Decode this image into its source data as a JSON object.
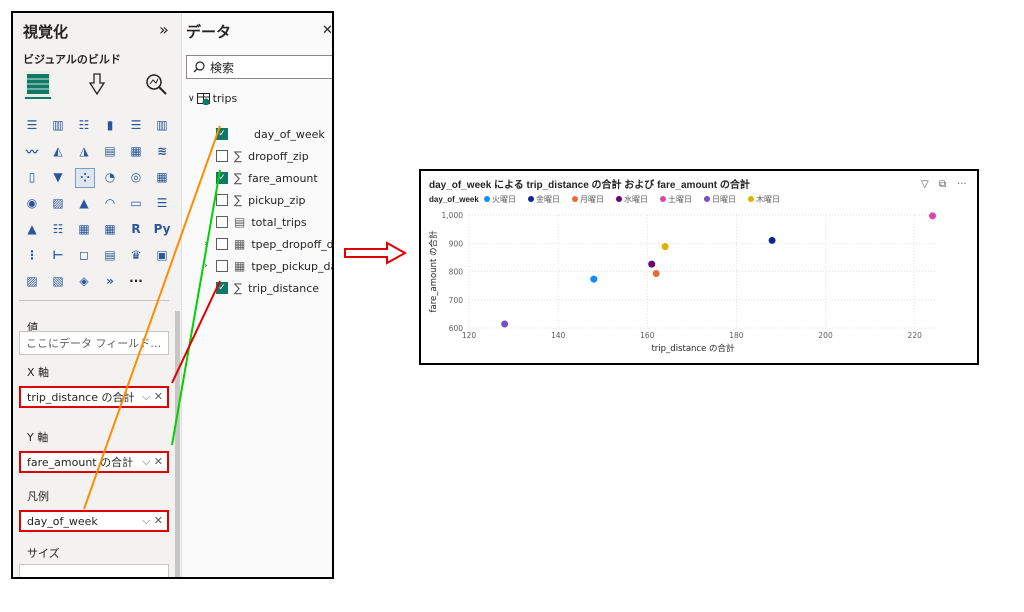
{
  "viz_pane": {
    "title": "視覚化",
    "collapse_glyph": "»",
    "build_label": "ビジュアルのビルド",
    "value_section": "値",
    "value_placeholder": "ここにデータ フィールド…",
    "x_axis_label": "X 軸",
    "x_axis_field": "trip_distance の合計",
    "y_axis_label": "Y 軸",
    "y_axis_field": "fare_amount の合計",
    "legend_label": "凡例",
    "legend_field": "day_of_week",
    "size_label": "サイズ",
    "well_controls": "⌵ ✕",
    "more_visuals": "···"
  },
  "data_pane": {
    "title": "データ",
    "close_glyph": "✕",
    "search_placeholder": "検索",
    "table_name": "trips",
    "fields": [
      {
        "label": "day_of_week",
        "checked": true,
        "kind": "text"
      },
      {
        "label": "dropoff_zip",
        "checked": false,
        "kind": "sigma"
      },
      {
        "label": "fare_amount",
        "checked": true,
        "kind": "sigma"
      },
      {
        "label": "pickup_zip",
        "checked": false,
        "kind": "sigma"
      },
      {
        "label": "total_trips",
        "checked": false,
        "kind": "calc"
      },
      {
        "label": "tpep_dropoff_da…",
        "checked": false,
        "kind": "date"
      },
      {
        "label": "tpep_pickup_dat…",
        "checked": false,
        "kind": "date"
      },
      {
        "label": "trip_distance",
        "checked": true,
        "kind": "sigma"
      }
    ]
  },
  "chart_data": {
    "type": "scatter",
    "title": "day_of_week による trip_distance の合計 および fare_amount の合計",
    "legend_title": "day_of_week",
    "xlabel": "trip_distance の合計",
    "ylabel": "fare_amount の合計",
    "xlim": [
      120,
      225
    ],
    "ylim": [
      600,
      1000
    ],
    "xticks": [
      120,
      140,
      160,
      180,
      200,
      220
    ],
    "yticks": [
      600,
      700,
      800,
      900,
      "1,000"
    ],
    "grid": true,
    "legend_position": "top-left",
    "series": [
      {
        "name": "火曜日",
        "color": "#118dff",
        "x": 148,
        "y": 773
      },
      {
        "name": "金曜日",
        "color": "#12239e",
        "x": 188,
        "y": 910
      },
      {
        "name": "月曜日",
        "color": "#e66c37",
        "x": 162,
        "y": 793
      },
      {
        "name": "水曜日",
        "color": "#6b007b",
        "x": 161,
        "y": 826
      },
      {
        "name": "土曜日",
        "color": "#e044a7",
        "x": 224,
        "y": 997
      },
      {
        "name": "日曜日",
        "color": "#744ec2",
        "x": 128,
        "y": 614
      },
      {
        "name": "木曜日",
        "color": "#d9b300",
        "x": 164,
        "y": 888
      }
    ],
    "toolbar": [
      "▽",
      "⧉",
      "···"
    ]
  },
  "colors": {
    "accent_green": "#117865",
    "highlight_red": "#e00000",
    "line_orange": "#ff8c00",
    "line_green": "#00d100",
    "arrow_red": "#e00000"
  }
}
